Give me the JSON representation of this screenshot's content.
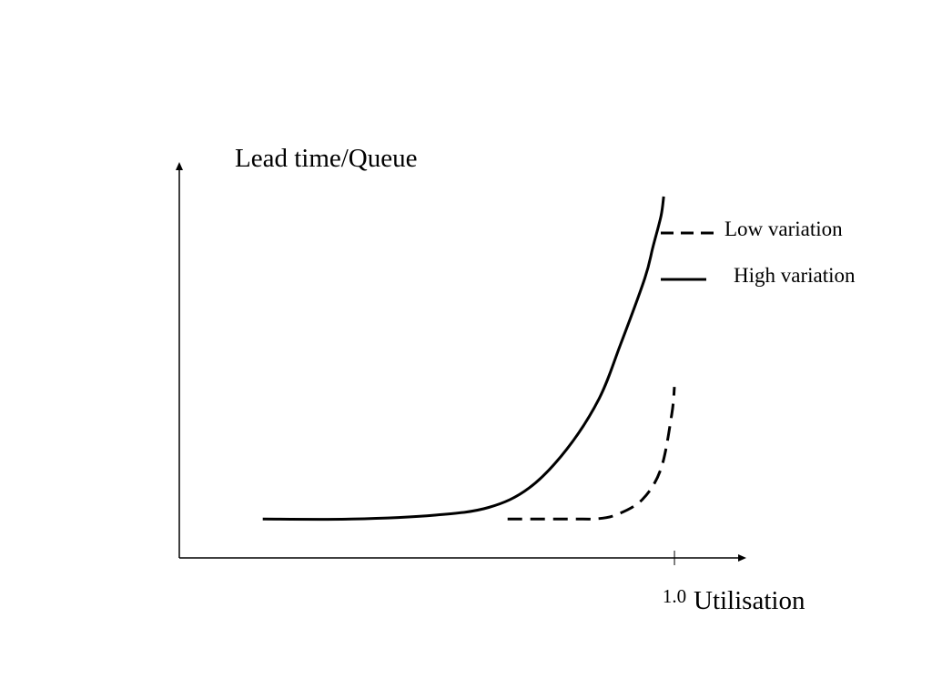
{
  "chart_data": {
    "type": "line",
    "ylabel": "Lead time/Queue",
    "xlabel": "Utilisation",
    "x_ticks": [
      {
        "value": 1.0,
        "label": "1.0"
      }
    ],
    "xlim": [
      -0.84,
      1.24
    ],
    "ylim": [
      0,
      1.0
    ],
    "grid": false,
    "legend_position": "top-right",
    "series": [
      {
        "name": "Low variation",
        "line_style": "dashed",
        "color": "#000000",
        "points": [
          [
            0.38,
            0.1
          ],
          [
            0.66,
            0.1
          ],
          [
            0.7,
            0.1
          ],
          [
            0.78,
            0.11
          ],
          [
            0.88,
            0.15
          ],
          [
            0.95,
            0.23
          ],
          [
            0.99,
            0.37
          ],
          [
            1.0,
            0.44
          ]
        ]
      },
      {
        "name": "High variation",
        "line_style": "solid",
        "color": "#000000",
        "points": [
          [
            -0.53,
            0.1
          ],
          [
            -0.2,
            0.1
          ],
          [
            0.11,
            0.11
          ],
          [
            0.31,
            0.13
          ],
          [
            0.46,
            0.18
          ],
          [
            0.6,
            0.28
          ],
          [
            0.72,
            0.41
          ],
          [
            0.8,
            0.55
          ],
          [
            0.89,
            0.72
          ],
          [
            0.92,
            0.8
          ],
          [
            0.95,
            0.88
          ],
          [
            0.96,
            0.93
          ]
        ]
      }
    ]
  }
}
